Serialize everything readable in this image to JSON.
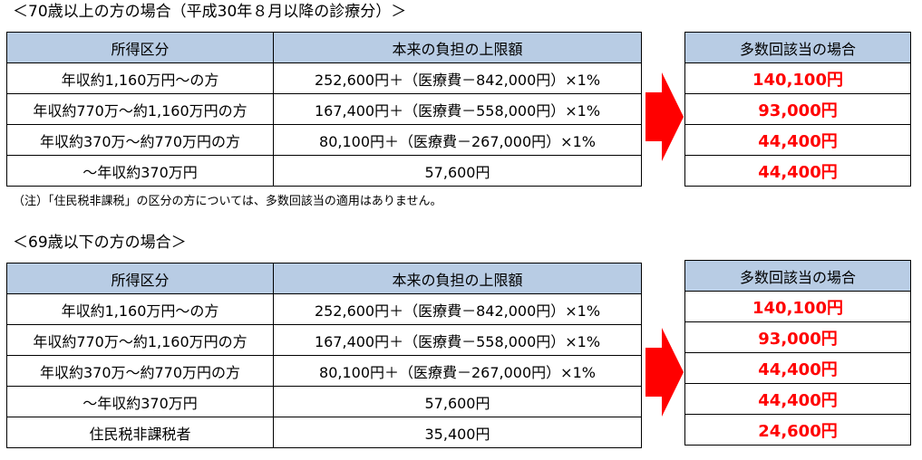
{
  "section1": {
    "heading": "＜70歳以上の方の場合（平成30年８月以降の診療分）＞",
    "headers": [
      "所得区分",
      "本来の負担の上限額"
    ],
    "rows": [
      [
        "年収約1,160万円～の方",
        "252,600円＋（医療費－842,000円）×1%"
      ],
      [
        "年収約770万～約1,160万円の方",
        "167,400円＋（医療費－558,000円）×1%"
      ],
      [
        "年収約370万～約770万円の方",
        "80,100円＋（医療費－267,000円）×1%"
      ],
      [
        "～年収約370万円",
        "57,600円"
      ]
    ],
    "side_header": "多数回該当の場合",
    "side_values": [
      "140,100円",
      "93,000円",
      "44,400円",
      "44,400円"
    ],
    "note": "（注）「住民税非課税」の区分の方については、多数回該当の適用はありません。",
    "arrow_color": "#ff0000"
  },
  "section2": {
    "heading": "＜69歳以下の方の場合＞",
    "headers": [
      "所得区分",
      "本来の負担の上限額"
    ],
    "rows": [
      [
        "年収約1,160万円～の方",
        "252,600円＋（医療費－842,000円）×1%"
      ],
      [
        "年収約770万～約1,160万円の方",
        "167,400円＋（医療費－558,000円）×1%"
      ],
      [
        "年収約370万～約770万円の方",
        "80,100円＋（医療費－267,000円）×1%"
      ],
      [
        "～年収約370万円",
        "57,600円"
      ],
      [
        "住民税非課税者",
        "35,400円"
      ]
    ],
    "side_header": "多数回該当の場合",
    "side_values": [
      "140,100円",
      "93,000円",
      "44,400円",
      "44,400円",
      "24,600円"
    ],
    "arrow_color": "#ff0000"
  }
}
